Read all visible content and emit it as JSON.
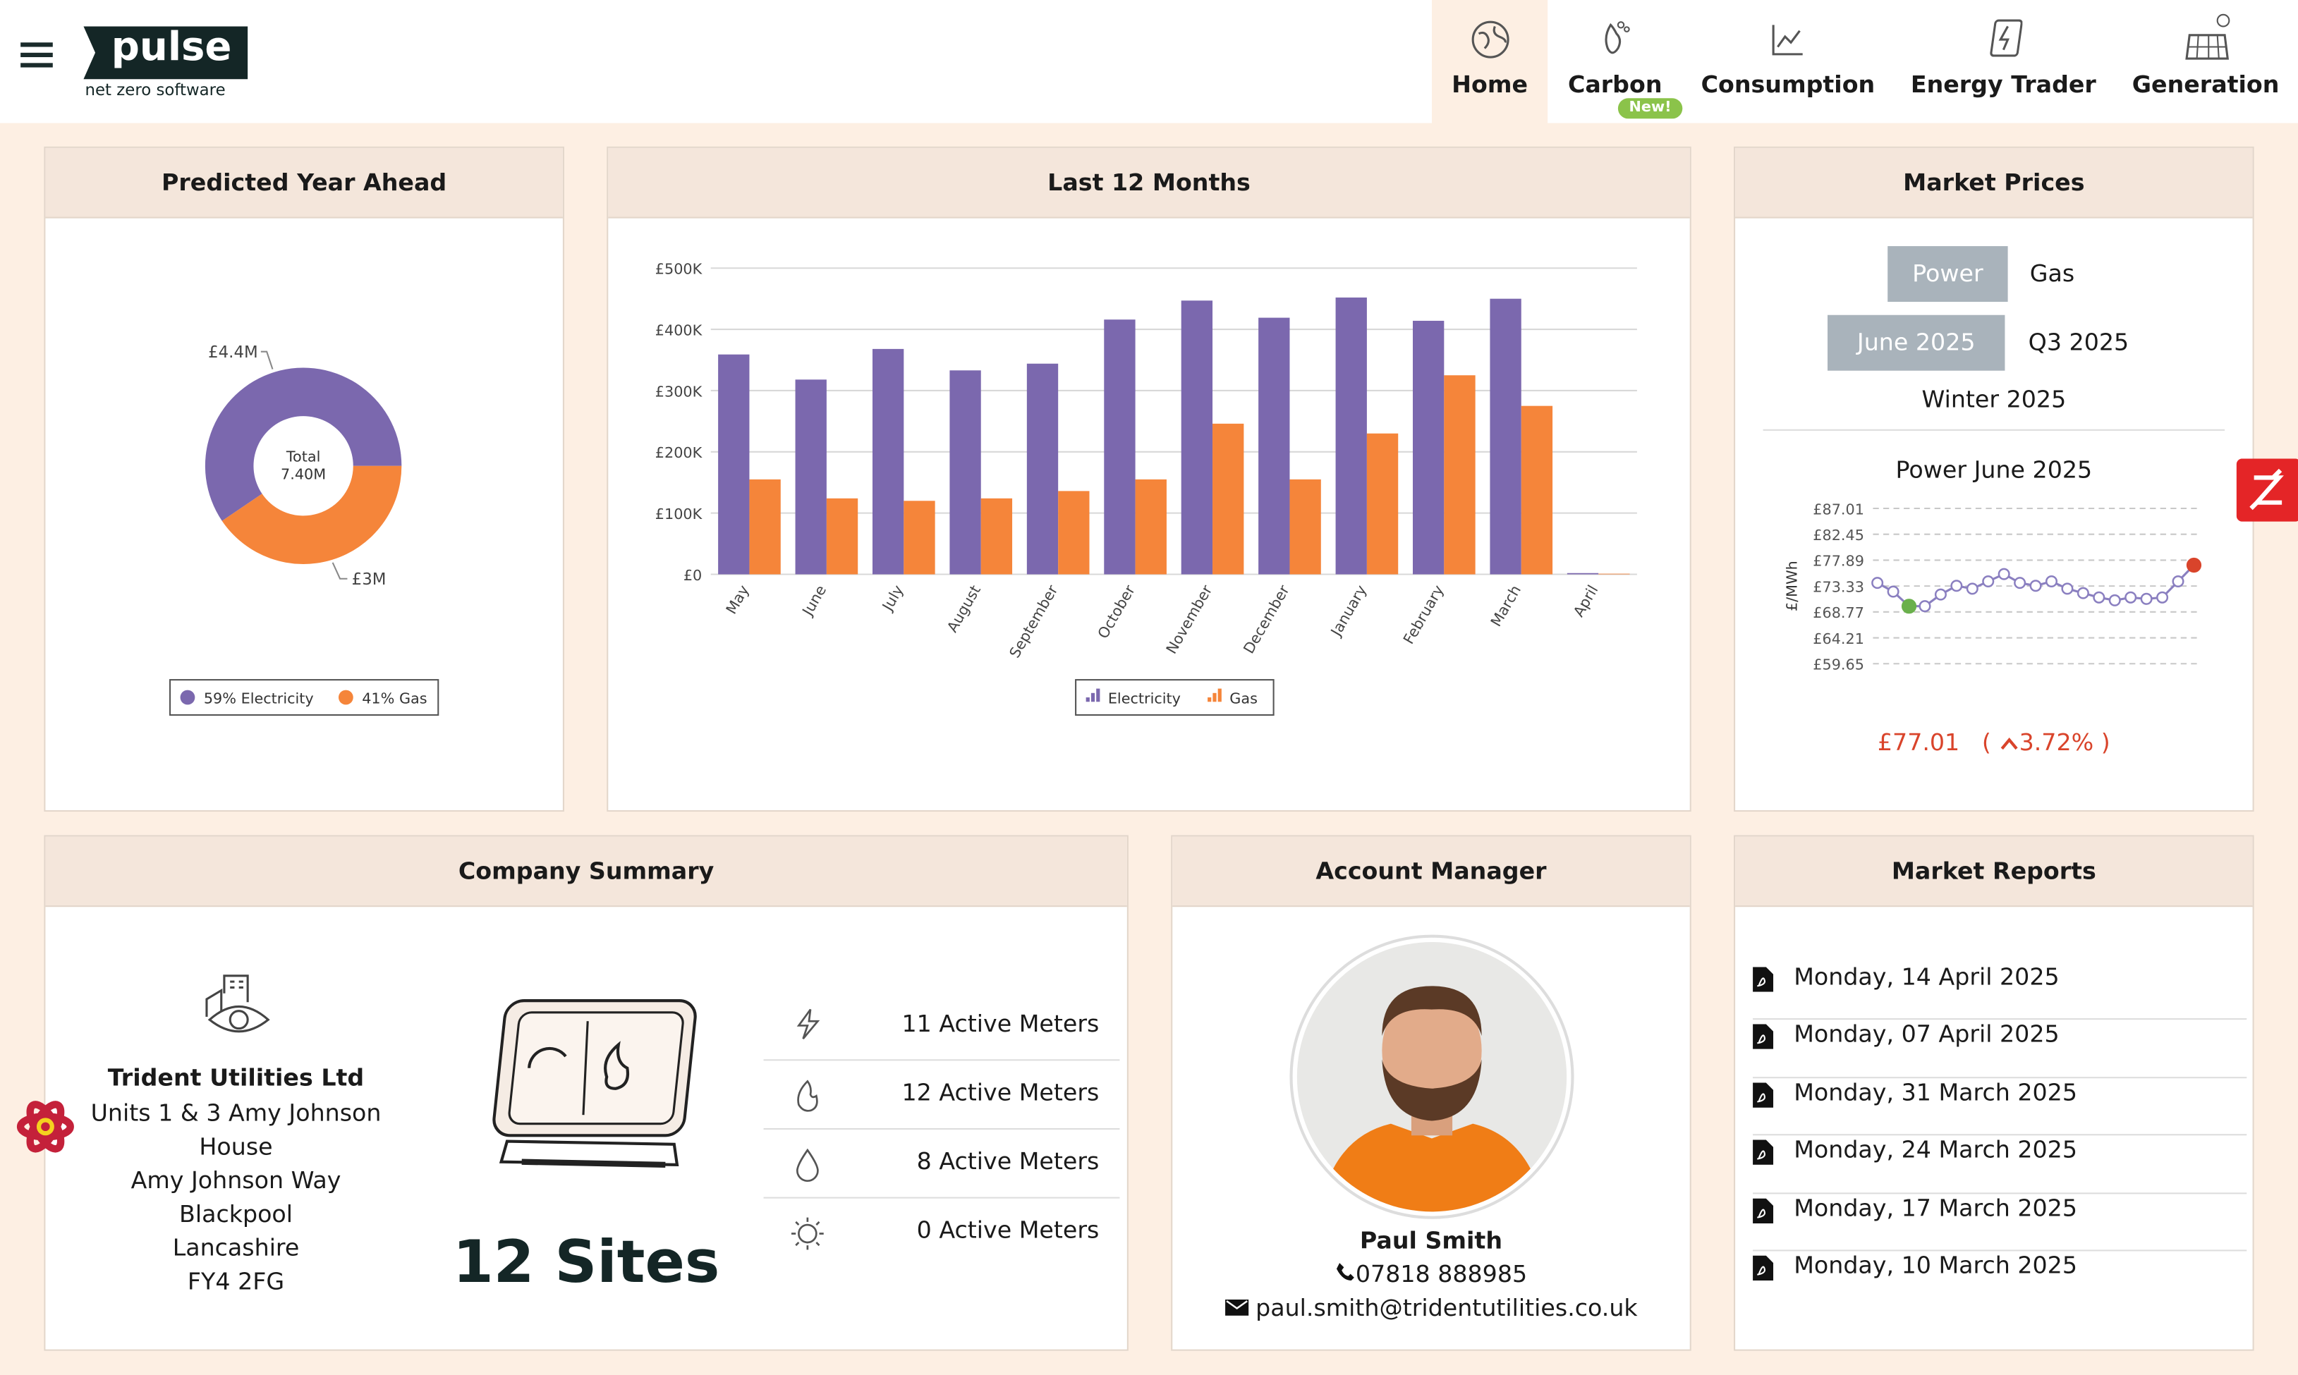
{
  "header": {
    "logo": "pulse",
    "tagline": "net zero software",
    "nav": [
      {
        "label": "Home"
      },
      {
        "label": "Carbon",
        "badge": "New!"
      },
      {
        "label": "Consumption"
      },
      {
        "label": "Energy Trader"
      },
      {
        "label": "Generation"
      }
    ]
  },
  "predicted": {
    "title": "Predicted Year Ahead",
    "chart": {
      "type": "donut",
      "categories": [
        "Electricity",
        "Gas"
      ],
      "values": [
        4.4,
        3.0
      ],
      "value_labels": [
        "£4.4M",
        "£3M"
      ],
      "colors": [
        "#7b68ae",
        "#f5853a"
      ],
      "center_label": "Total",
      "center_value": "7.40M",
      "legend": [
        "59% Electricity",
        "41% Gas"
      ]
    }
  },
  "last12": {
    "title": "Last 12 Months",
    "chart": {
      "type": "bar",
      "categories": [
        "May",
        "June",
        "July",
        "August",
        "September",
        "October",
        "November",
        "December",
        "January",
        "February",
        "March",
        "April"
      ],
      "series": [
        {
          "name": "Electricity",
          "color": "#7b68ae",
          "values": [
            359000,
            318000,
            368000,
            333000,
            344000,
            416000,
            447000,
            419000,
            452000,
            414000,
            450000,
            2000
          ]
        },
        {
          "name": "Gas",
          "color": "#f5853a",
          "values": [
            155000,
            124000,
            120000,
            124000,
            136000,
            155000,
            246000,
            155000,
            230000,
            325000,
            275000,
            1000
          ]
        }
      ],
      "ylim": [
        0,
        500000
      ],
      "yticks": [
        {
          "value": 0,
          "label": "£0"
        },
        {
          "value": 100000,
          "label": "£100K"
        },
        {
          "value": 200000,
          "label": "£200K"
        },
        {
          "value": 300000,
          "label": "£300K"
        },
        {
          "value": 400000,
          "label": "£400K"
        },
        {
          "value": 500000,
          "label": "£500K"
        }
      ],
      "grid": true
    }
  },
  "market": {
    "title": "Market Prices",
    "commodities": [
      "Power",
      "Gas"
    ],
    "periods": [
      "June 2025",
      "Q3 2025",
      "Winter 2025"
    ],
    "chart": {
      "type": "line",
      "title": "Power June 2025",
      "ylabel": "£/MWh",
      "color": "#8a7fc0",
      "values": [
        73.89,
        72.35,
        69.78,
        69.78,
        71.84,
        73.38,
        72.86,
        74.15,
        75.44,
        73.89,
        73.38,
        74.15,
        72.86,
        72.09,
        71.32,
        70.81,
        71.32,
        71.07,
        71.32,
        74.15,
        77.01
      ],
      "ylim": [
        59.65,
        87.01
      ],
      "yticks": [
        {
          "value": 87.01,
          "label": "£87.01"
        },
        {
          "value": 82.45,
          "label": "£82.45"
        },
        {
          "value": 77.89,
          "label": "£77.89"
        },
        {
          "value": 73.33,
          "label": "£73.33"
        },
        {
          "value": 68.77,
          "label": "£68.77"
        },
        {
          "value": 64.21,
          "label": "£64.21"
        },
        {
          "value": 59.65,
          "label": "£59.65"
        }
      ],
      "grid": true
    },
    "price": "£77.01",
    "change": [
      "(",
      "3.72%",
      ")"
    ]
  },
  "company": {
    "title": "Company Summary",
    "name": "Trident Utilities Ltd",
    "address": [
      "Units 1 & 3 Amy Johnson House",
      "Amy Johnson Way",
      "Blackpool",
      "Lancashire",
      "FY4 2FG"
    ],
    "sites": "12 Sites",
    "meters": [
      "11 Active Meters",
      "12 Active Meters",
      "8 Active Meters",
      "0 Active Meters"
    ]
  },
  "manager": {
    "title": "Account Manager",
    "name": "Paul Smith",
    "phone": "07818 888985",
    "email": "paul.smith@tridentutilities.co.uk"
  },
  "reports": {
    "title": "Market Reports",
    "items": [
      "Monday, 14 April 2025",
      "Monday, 07 April 2025",
      "Monday, 31 March 2025",
      "Monday, 24 March 2025",
      "Monday, 17 March 2025",
      "Monday, 10 March 2025"
    ]
  }
}
